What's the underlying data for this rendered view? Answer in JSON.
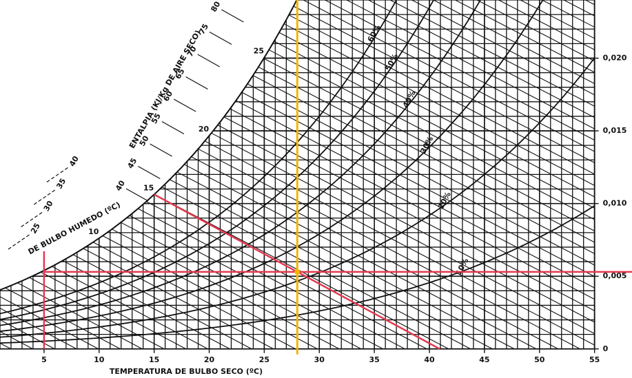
{
  "chart_data": {
    "type": "psychrometric",
    "x_label": "TEMPERATURA DE BULBO SECO (ºC)",
    "xlim": [
      1,
      58.4
    ],
    "xticks": [
      5,
      10,
      15,
      20,
      25,
      30,
      35,
      40,
      45,
      50,
      55
    ],
    "ylim": [
      -0.002,
      0.024
    ],
    "yticks": [
      0,
      {
        "value": 0.005,
        "label": "0,005"
      },
      {
        "value": 0.01,
        "label": "0,010"
      },
      {
        "value": 0.015,
        "label": "0,015"
      },
      {
        "value": 0.02,
        "label": "0,020"
      }
    ],
    "grid": true,
    "enthalpy_label": "ENTALPIA (KJ/Kg DE AIRE SECO)",
    "enthalpy_ticks": [
      40,
      45,
      50,
      55,
      60,
      65,
      70,
      75,
      80
    ],
    "wet_bulb_label": "DE BULBO HUMEDO (ºC)",
    "outer_scale_ticks": [
      25,
      30,
      35,
      40
    ],
    "wet_bulb_ticks": [
      10,
      15,
      20,
      25
    ],
    "rh_curves": {
      "values": [
        10,
        20,
        30,
        40,
        50,
        60
      ],
      "value_labels": [
        "10%",
        "20%",
        "30%",
        "40%",
        "50%",
        "60%"
      ]
    },
    "state_point": {
      "dry_bulb": 28,
      "wet_bulb": 15,
      "dew_point": 5,
      "humidity_ratio": 0.0053
    },
    "process_color": "#e5384e",
    "dry_bulb_color": "#f2b600",
    "line_color": "#111111"
  }
}
